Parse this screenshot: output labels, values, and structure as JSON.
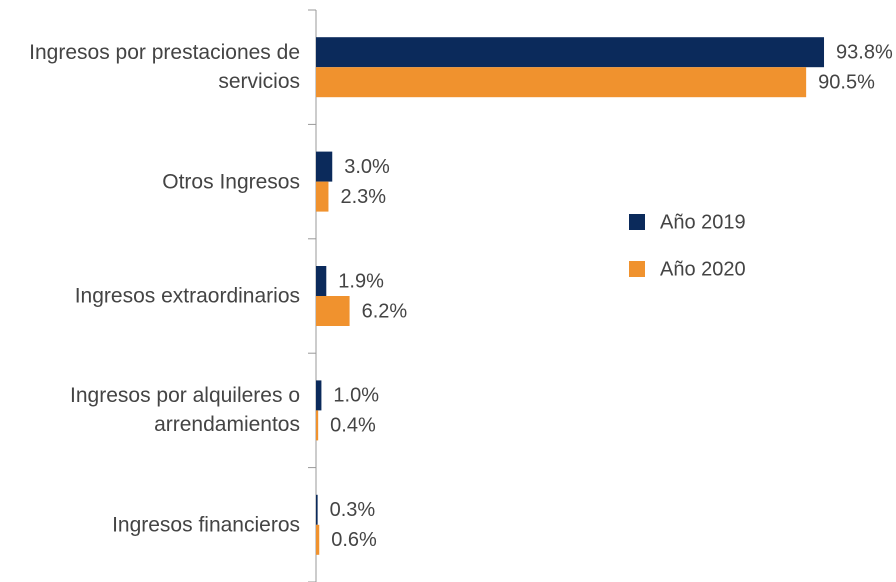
{
  "chart_data": {
    "type": "hbar",
    "categories": [
      "Ingresos por prestaciones de\nservicios",
      "Otros Ingresos",
      "Ingresos extraordinarios",
      "Ingresos por alquileres o\narrendamientos",
      "Ingresos financieros"
    ],
    "series": [
      {
        "name": "Año 2019",
        "color": "#0b2a5b",
        "values": [
          93.8,
          3.0,
          1.9,
          1.0,
          0.3
        ],
        "value_labels": [
          "93.8%",
          "3.0%",
          "1.9%",
          "1.0%",
          "0.3%"
        ]
      },
      {
        "name": "Año 2020",
        "color": "#f0922e",
        "values": [
          90.5,
          2.3,
          6.2,
          0.4,
          0.6
        ],
        "value_labels": [
          "90.5%",
          "2.3%",
          "6.2%",
          "0.4%",
          "0.6%"
        ]
      }
    ],
    "xlim": [
      0,
      100
    ],
    "legend": "right"
  }
}
